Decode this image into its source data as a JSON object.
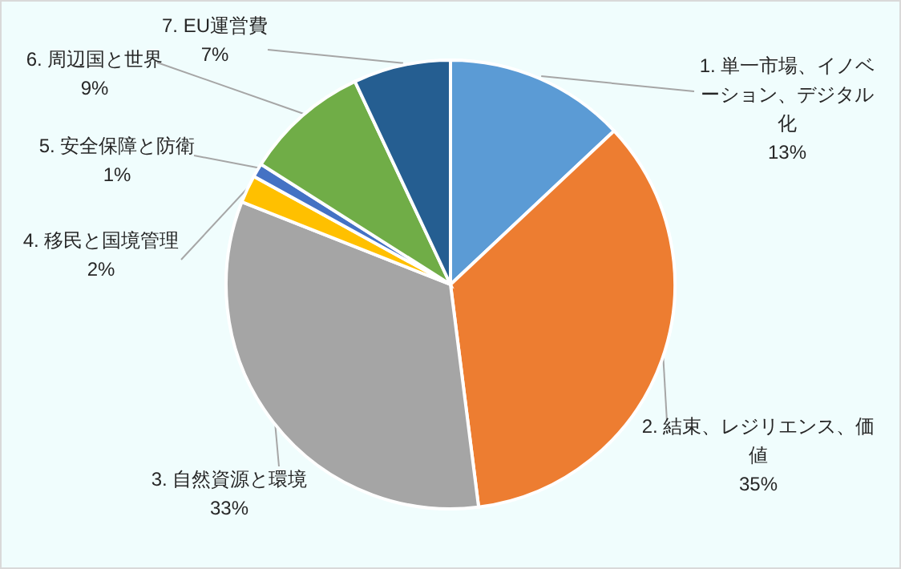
{
  "chart_data": {
    "type": "pie",
    "categories": [
      "1. 単一市場、イノベーション、デジタル化",
      "2. 結束、レジリエンス、価値",
      "3. 自然資源と環境",
      "4. 移民と国境管理",
      "5. 安全保障と防衛",
      "6. 周辺国と世界",
      "7. EU運営費"
    ],
    "values": [
      13,
      35,
      33,
      2,
      1,
      9,
      7
    ],
    "colors": [
      "#5b9bd5",
      "#ed7d31",
      "#a5a5a5",
      "#ffc000",
      "#4472c4",
      "#70ad47",
      "#255e91"
    ],
    "value_labels": [
      "13%",
      "35%",
      "33%",
      "2%",
      "1%",
      "9%",
      "7%"
    ]
  }
}
